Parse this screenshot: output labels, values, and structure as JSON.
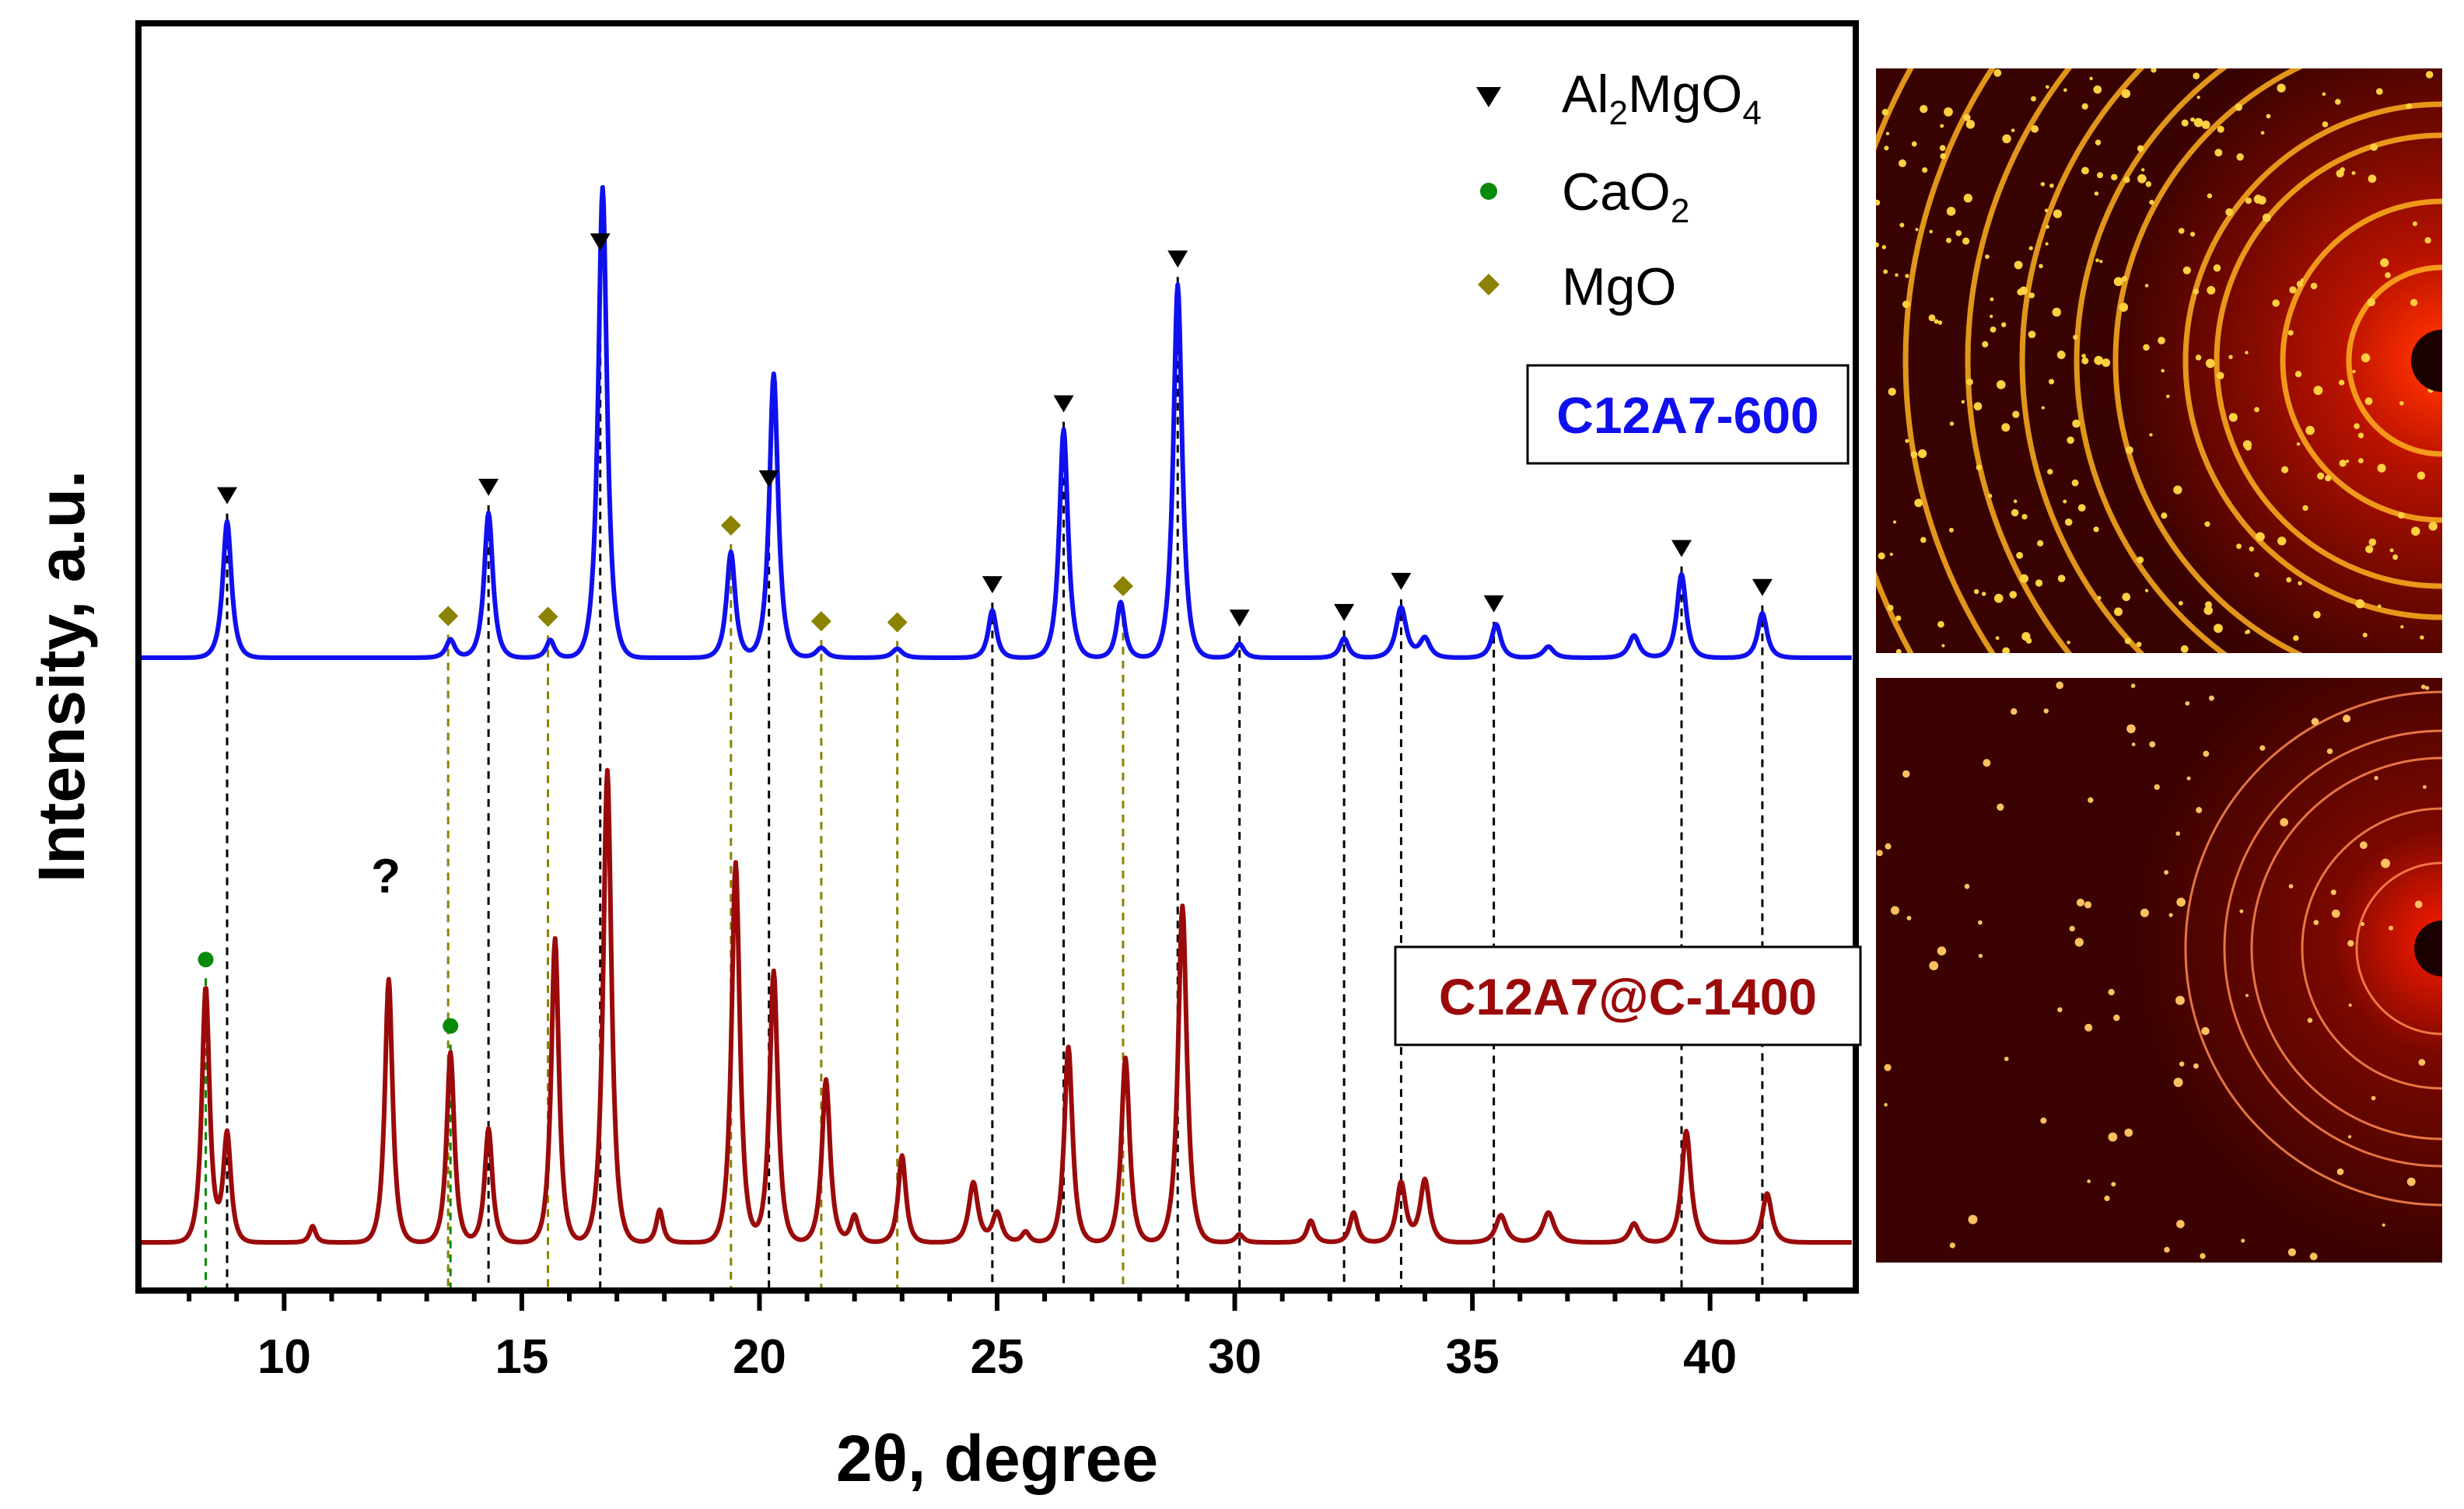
{
  "chart_data": {
    "type": "line",
    "xlabel": "2θ, degree",
    "ylabel": "Intensity, a.u.",
    "xlim": [
      7,
      43
    ],
    "xticks": [
      10,
      15,
      20,
      25,
      30,
      35,
      40
    ],
    "tick_labels": [
      "10",
      "15",
      "20",
      "25",
      "30",
      "35",
      "40"
    ],
    "legend": [
      {
        "symbol": "triangle-down",
        "color": "#000000",
        "label_main": "Al",
        "sub1": "2",
        "label_mid": "MgO",
        "sub2": "4"
      },
      {
        "symbol": "circle",
        "color": "#0a8a0a",
        "label_main": "CaO",
        "sub1": "2",
        "label_mid": "",
        "sub2": ""
      },
      {
        "symbol": "diamond",
        "color": "#8a8200",
        "label_main": "MgO",
        "sub1": "",
        "label_mid": "",
        "sub2": ""
      }
    ],
    "series": [
      {
        "name": "C12A7-600",
        "color": "#1010ee",
        "baseline": 0.08,
        "peaks": [
          {
            "x": 8.8,
            "h": 0.245,
            "w": 0.17
          },
          {
            "x": 13.5,
            "h": 0.033,
            "w": 0.17
          },
          {
            "x": 14.3,
            "h": 0.26,
            "w": 0.17
          },
          {
            "x": 15.6,
            "h": 0.032,
            "w": 0.16
          },
          {
            "x": 16.7,
            "h": 0.845,
            "w": 0.17
          },
          {
            "x": 19.4,
            "h": 0.19,
            "w": 0.17
          },
          {
            "x": 20.3,
            "h": 0.51,
            "w": 0.17
          },
          {
            "x": 21.3,
            "h": 0.018,
            "w": 0.2
          },
          {
            "x": 22.9,
            "h": 0.016,
            "w": 0.2
          },
          {
            "x": 24.9,
            "h": 0.085,
            "w": 0.16
          },
          {
            "x": 26.4,
            "h": 0.41,
            "w": 0.17
          },
          {
            "x": 27.6,
            "h": 0.1,
            "w": 0.16
          },
          {
            "x": 28.8,
            "h": 0.67,
            "w": 0.17
          },
          {
            "x": 30.1,
            "h": 0.025,
            "w": 0.17
          },
          {
            "x": 32.3,
            "h": 0.035,
            "w": 0.17
          },
          {
            "x": 33.5,
            "h": 0.09,
            "w": 0.2
          },
          {
            "x": 34.0,
            "h": 0.035,
            "w": 0.2
          },
          {
            "x": 35.5,
            "h": 0.06,
            "w": 0.18
          },
          {
            "x": 36.6,
            "h": 0.02,
            "w": 0.2
          },
          {
            "x": 38.4,
            "h": 0.04,
            "w": 0.2
          },
          {
            "x": 39.4,
            "h": 0.15,
            "w": 0.18
          },
          {
            "x": 41.1,
            "h": 0.08,
            "w": 0.18
          }
        ]
      },
      {
        "name": "C12A7@C-1400",
        "color": "#9b0a0a",
        "baseline": 0.08,
        "peaks": [
          {
            "x": 8.35,
            "h": 0.47,
            "w": 0.15
          },
          {
            "x": 8.8,
            "h": 0.2,
            "w": 0.15
          },
          {
            "x": 10.6,
            "h": 0.03,
            "w": 0.12
          },
          {
            "x": 12.2,
            "h": 0.485,
            "w": 0.15
          },
          {
            "x": 13.5,
            "h": 0.35,
            "w": 0.15
          },
          {
            "x": 14.3,
            "h": 0.21,
            "w": 0.15
          },
          {
            "x": 15.7,
            "h": 0.56,
            "w": 0.15
          },
          {
            "x": 16.8,
            "h": 0.87,
            "w": 0.16
          },
          {
            "x": 17.9,
            "h": 0.06,
            "w": 0.13
          },
          {
            "x": 19.5,
            "h": 0.7,
            "w": 0.16
          },
          {
            "x": 20.3,
            "h": 0.5,
            "w": 0.16
          },
          {
            "x": 21.4,
            "h": 0.3,
            "w": 0.16
          },
          {
            "x": 22.0,
            "h": 0.05,
            "w": 0.15
          },
          {
            "x": 23.0,
            "h": 0.16,
            "w": 0.15
          },
          {
            "x": 24.5,
            "h": 0.11,
            "w": 0.18
          },
          {
            "x": 25.0,
            "h": 0.055,
            "w": 0.18
          },
          {
            "x": 25.6,
            "h": 0.02,
            "w": 0.15
          },
          {
            "x": 26.5,
            "h": 0.36,
            "w": 0.16
          },
          {
            "x": 27.7,
            "h": 0.34,
            "w": 0.16
          },
          {
            "x": 28.9,
            "h": 0.62,
            "w": 0.17
          },
          {
            "x": 30.1,
            "h": 0.015,
            "w": 0.15
          },
          {
            "x": 31.6,
            "h": 0.04,
            "w": 0.15
          },
          {
            "x": 32.5,
            "h": 0.055,
            "w": 0.15
          },
          {
            "x": 33.5,
            "h": 0.11,
            "w": 0.18
          },
          {
            "x": 34.0,
            "h": 0.115,
            "w": 0.18
          },
          {
            "x": 35.6,
            "h": 0.05,
            "w": 0.2
          },
          {
            "x": 36.6,
            "h": 0.055,
            "w": 0.22
          },
          {
            "x": 38.4,
            "h": 0.035,
            "w": 0.18
          },
          {
            "x": 39.5,
            "h": 0.205,
            "w": 0.18
          },
          {
            "x": 41.2,
            "h": 0.09,
            "w": 0.18
          }
        ]
      }
    ],
    "reference_lines": [
      {
        "x": 8.35,
        "phase": "CaO2"
      },
      {
        "x": 8.8,
        "phase": "Al2MgO4"
      },
      {
        "x": 13.45,
        "phase": "MgO"
      },
      {
        "x": 13.5,
        "phase": "CaO2"
      },
      {
        "x": 14.3,
        "phase": "Al2MgO4"
      },
      {
        "x": 15.55,
        "phase": "MgO"
      },
      {
        "x": 16.65,
        "phase": "Al2MgO4"
      },
      {
        "x": 19.4,
        "phase": "MgO"
      },
      {
        "x": 20.2,
        "phase": "Al2MgO4"
      },
      {
        "x": 21.3,
        "phase": "MgO"
      },
      {
        "x": 22.9,
        "phase": "MgO"
      },
      {
        "x": 24.9,
        "phase": "Al2MgO4"
      },
      {
        "x": 26.4,
        "phase": "Al2MgO4"
      },
      {
        "x": 27.65,
        "phase": "MgO"
      },
      {
        "x": 28.8,
        "phase": "Al2MgO4"
      },
      {
        "x": 30.1,
        "phase": "Al2MgO4"
      },
      {
        "x": 32.3,
        "phase": "Al2MgO4"
      },
      {
        "x": 33.5,
        "phase": "Al2MgO4"
      },
      {
        "x": 35.45,
        "phase": "Al2MgO4"
      },
      {
        "x": 39.4,
        "phase": "Al2MgO4"
      },
      {
        "x": 41.1,
        "phase": "Al2MgO4"
      }
    ],
    "annotations": [
      {
        "text": "?",
        "x": 12.2,
        "series": "C12A7@C-1400"
      }
    ],
    "inset_images": [
      {
        "name": "diffraction-rings-600",
        "description_ref": "C12A7-600"
      },
      {
        "name": "diffraction-rings-1400",
        "description_ref": "C12A7@C-1400"
      }
    ]
  }
}
